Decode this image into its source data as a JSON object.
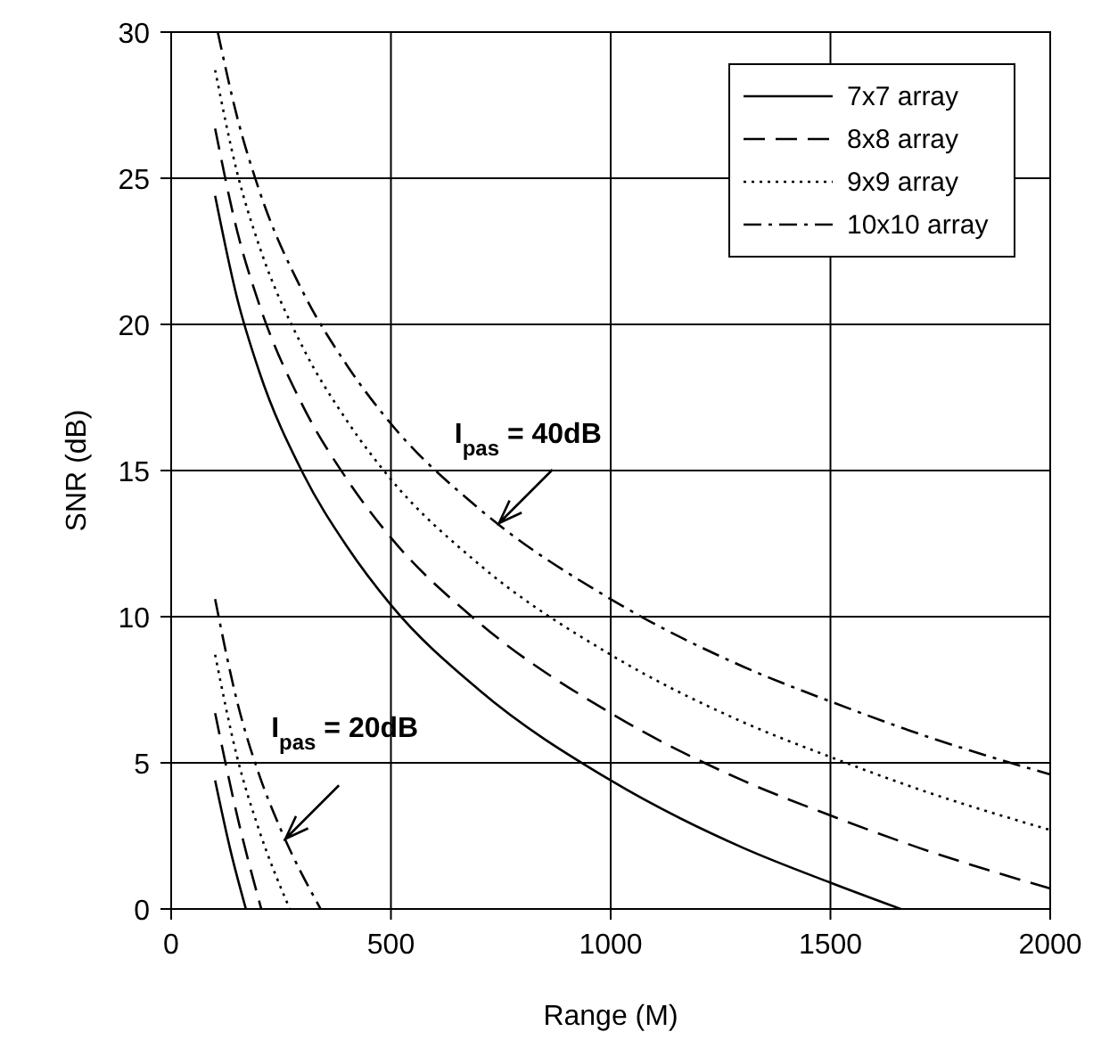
{
  "chart_data": {
    "type": "line",
    "xlabel": "Range (M)",
    "ylabel": "SNR (dB)",
    "xlim": [
      0,
      2000
    ],
    "ylim": [
      0,
      30
    ],
    "xticks": [
      0,
      500,
      1000,
      1500,
      2000
    ],
    "yticks": [
      0,
      5,
      10,
      15,
      20,
      25,
      30
    ],
    "grid": true,
    "legend": "top right",
    "marker": "none",
    "series": [
      {
        "name": "7x7 array",
        "color": "#000000",
        "line_style": "solid",
        "x": [
          100,
          150,
          200,
          300,
          400,
          500,
          700,
          1000,
          1300,
          1500,
          1660
        ],
        "values": [
          24.4,
          20.9,
          18.4,
          14.9,
          12.4,
          10.4,
          7.5,
          4.4,
          2.1,
          0.9,
          0
        ]
      },
      {
        "name": "8x8 array",
        "color": "#000000",
        "line_style": "dashed",
        "x": [
          100,
          150,
          200,
          300,
          400,
          500,
          700,
          1000,
          1300,
          1500,
          1700,
          2000
        ],
        "values": [
          26.7,
          23.2,
          20.7,
          17.2,
          14.7,
          12.7,
          9.8,
          6.7,
          4.4,
          3.2,
          2.1,
          0.7
        ]
      },
      {
        "name": "9x9 array",
        "color": "#000000",
        "line_style": "dotted",
        "x": [
          100,
          150,
          200,
          300,
          400,
          500,
          700,
          1000,
          1300,
          1500,
          1700,
          2000
        ],
        "values": [
          28.7,
          25.2,
          22.7,
          19.2,
          16.7,
          14.7,
          11.8,
          8.7,
          6.4,
          5.2,
          4.1,
          2.7
        ]
      },
      {
        "name": "10x10 array",
        "color": "#000000",
        "line_style": "dashdot",
        "x": [
          106,
          150,
          200,
          300,
          400,
          500,
          700,
          1000,
          1300,
          1500,
          1700,
          2000
        ],
        "values": [
          30,
          27.1,
          24.6,
          21.1,
          18.6,
          16.6,
          13.7,
          10.6,
          8.3,
          7.1,
          6.0,
          4.6
        ]
      },
      {
        "color": "#000000",
        "line_style": "solid",
        "x": [
          100,
          135,
          170
        ],
        "values": [
          4.4,
          2.0,
          0
        ]
      },
      {
        "color": "#000000",
        "line_style": "dashed",
        "x": [
          100,
          150,
          205
        ],
        "values": [
          6.7,
          3.2,
          0
        ]
      },
      {
        "color": "#000000",
        "line_style": "dotted",
        "x": [
          100,
          150,
          200,
          270
        ],
        "values": [
          8.7,
          5.2,
          2.7,
          0
        ]
      },
      {
        "color": "#000000",
        "line_style": "dashdot",
        "x": [
          100,
          150,
          200,
          250,
          340
        ],
        "values": [
          10.6,
          7.1,
          4.6,
          2.7,
          0
        ]
      }
    ],
    "annotations": [
      {
        "text": "I$_{pas}$ = 40dB",
        "x": 746,
        "y": 13.2
      },
      {
        "text": "I$_{pas}$ = 20dB",
        "x": 260,
        "y": 2.4
      }
    ]
  }
}
